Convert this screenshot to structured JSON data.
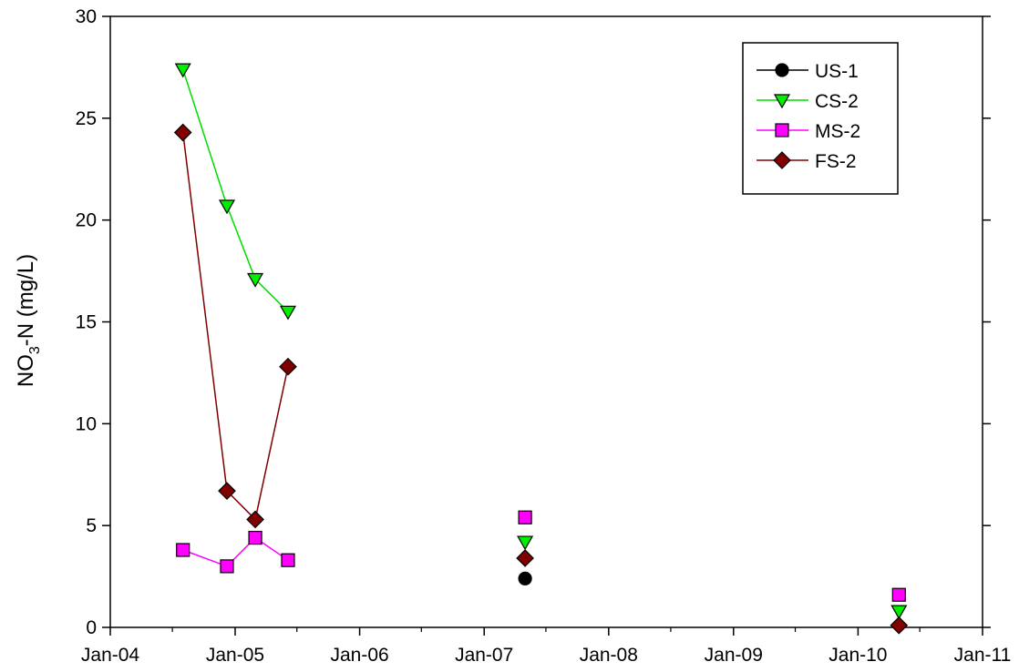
{
  "chart_data": {
    "type": "scatter",
    "title": "",
    "xlabel": "",
    "ylabel": {
      "main": "NO",
      "sub": "3",
      "rest": "-N (mg/L)"
    },
    "xlim": [
      "2004-01-01",
      "2011-01-01"
    ],
    "ylim": [
      0,
      30
    ],
    "x_ticks": [
      "Jan-04",
      "Jan-05",
      "Jan-06",
      "Jan-07",
      "Jan-08",
      "Jan-09",
      "Jan-10",
      "Jan-11"
    ],
    "y_ticks": [
      0,
      5,
      10,
      15,
      20,
      25,
      30
    ],
    "grid": false,
    "legend_position": "top-right",
    "series": [
      {
        "name": "US-1",
        "marker": "circle",
        "color": "#000000",
        "line_color": "#000000",
        "points": [
          {
            "x": "2007-05-01",
            "y": 2.4
          }
        ]
      },
      {
        "name": "CS-2",
        "marker": "triangle-down",
        "color": "#00ee00",
        "line_color": "#00dd00",
        "points": [
          {
            "x": "2004-08-01",
            "y": 27.4
          },
          {
            "x": "2004-12-08",
            "y": 20.7
          },
          {
            "x": "2005-03-01",
            "y": 17.1
          },
          {
            "x": "2005-06-05",
            "y": 15.5
          },
          {
            "x": "2007-05-01",
            "y": 4.2
          },
          {
            "x": "2010-05-01",
            "y": 0.8
          }
        ]
      },
      {
        "name": "MS-2",
        "marker": "square",
        "color": "#ff00ff",
        "line_color": "#ff00ff",
        "points": [
          {
            "x": "2004-08-01",
            "y": 3.8
          },
          {
            "x": "2004-12-08",
            "y": 3.0
          },
          {
            "x": "2005-03-01",
            "y": 4.4
          },
          {
            "x": "2005-06-05",
            "y": 3.3
          },
          {
            "x": "2007-05-01",
            "y": 5.4
          },
          {
            "x": "2010-05-01",
            "y": 1.6
          }
        ]
      },
      {
        "name": "FS-2",
        "marker": "diamond",
        "color": "#800000",
        "line_color": "#800000",
        "points": [
          {
            "x": "2004-08-01",
            "y": 24.3
          },
          {
            "x": "2004-12-08",
            "y": 6.7
          },
          {
            "x": "2005-03-01",
            "y": 5.3
          },
          {
            "x": "2005-06-05",
            "y": 12.8
          },
          {
            "x": "2007-05-01",
            "y": 3.4
          },
          {
            "x": "2010-05-01",
            "y": 0.1
          }
        ]
      }
    ]
  }
}
